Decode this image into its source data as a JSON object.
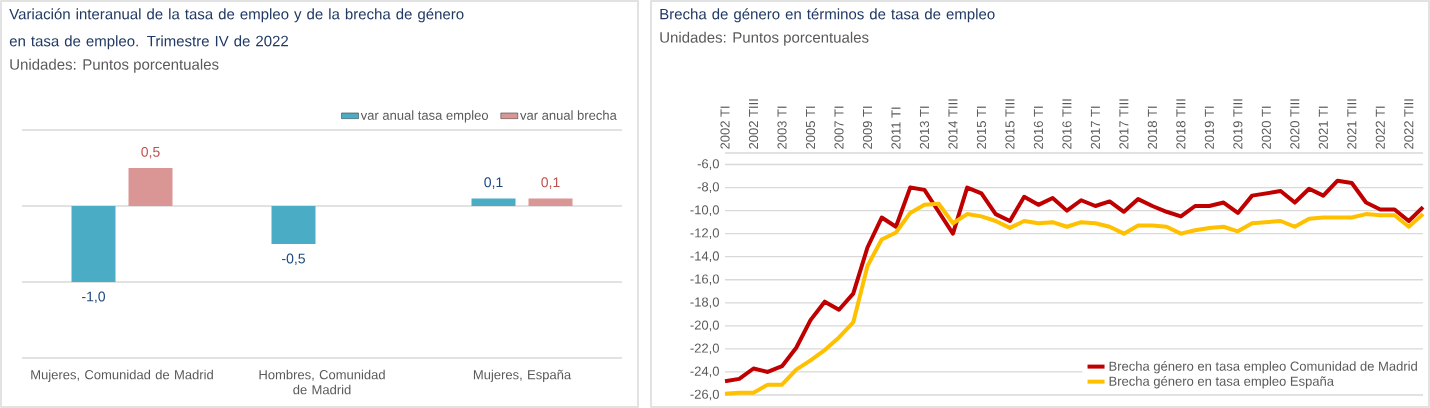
{
  "chart_data": [
    {
      "type": "bar",
      "title": "Variación interanual de la tasa de empleo y de la brecha de género en tasa de empleo. Trimestre IV de 2022",
      "subtitle": "Unidades: Puntos porcentuales",
      "categories": [
        "Mujeres, Comunidad de Madrid",
        "Hombres, Comunidad de Madrid",
        "Mujeres, España"
      ],
      "series": [
        {
          "name": "var anual tasa empleo",
          "color": "#4bacc6",
          "values": [
            -1.0,
            -0.5,
            0.1
          ],
          "value_labels": [
            "-1,0",
            "-0,5",
            "0,1"
          ]
        },
        {
          "name": "var anual brecha",
          "color": "#d99694",
          "values": [
            0.5,
            null,
            0.1
          ],
          "value_labels": [
            "0,5",
            null,
            "0,1"
          ]
        }
      ],
      "ylim": [
        -2,
        1
      ],
      "yticks": [
        {
          "value": -2,
          "label": null
        },
        {
          "value": -1,
          "label": null
        },
        {
          "value": 0,
          "label": null
        },
        {
          "value": 1,
          "label": null
        }
      ],
      "grid": "y",
      "legend": "top right",
      "tick_labels": "x"
    },
    {
      "type": "line",
      "title": "Brecha de género en términos de tasa de empleo",
      "subtitle": "Unidades: Puntos porcentuales",
      "categories": [
        "2002 TI",
        null,
        "2002 TIII",
        null,
        "2003 TI",
        null,
        "2005 TI",
        null,
        "2007 TI",
        null,
        "2009 TI",
        null,
        "2011 TI",
        null,
        "2013 TI",
        null,
        "2014 TIII",
        null,
        "2015 TI",
        null,
        "2015 TIII",
        null,
        "2016 TI",
        null,
        "2016 TIII",
        null,
        "2017 TI",
        null,
        "2017 TIII",
        null,
        "2018 TI",
        null,
        "2018 TIII",
        null,
        "2019 TI",
        null,
        "2019 TIII",
        null,
        "2020 TI",
        null,
        "2020 TIII",
        null,
        "2021 TI",
        null,
        "2021 TIII",
        null,
        "2022 TI",
        null,
        "2022 TIII",
        null
      ],
      "series": [
        {
          "name": "Brecha género en tasa empleo Comunidad de Madrid",
          "color": "#c00000",
          "values": [
            -24.8,
            -24.6,
            -23.7,
            -24.0,
            -23.5,
            -21.9,
            -19.5,
            -17.9,
            -18.6,
            -17.2,
            -13.2,
            -10.6,
            -11.4,
            -8.0,
            -8.2,
            -10.1,
            -12.0,
            -8.0,
            -8.5,
            -10.3,
            -10.9,
            -8.8,
            -9.5,
            -8.9,
            -10.0,
            -9.1,
            -9.6,
            -9.2,
            -10.1,
            -9.0,
            -9.6,
            -10.1,
            -10.5,
            -9.6,
            -9.6,
            -9.3,
            -10.2,
            -8.7,
            -8.5,
            -8.3,
            -9.3,
            -8.1,
            -8.7,
            -7.4,
            -7.6,
            -9.3,
            -9.9,
            -9.9,
            -10.9,
            -9.7
          ]
        },
        {
          "name": "Brecha género en tasa empleo España",
          "color": "#ffc000",
          "values": [
            -25.9,
            -25.8,
            -25.8,
            -25.1,
            -25.1,
            -23.8,
            -23.0,
            -22.1,
            -21.0,
            -19.7,
            -14.8,
            -12.5,
            -11.9,
            -10.2,
            -9.5,
            -9.4,
            -11.1,
            -10.3,
            -10.5,
            -10.9,
            -11.5,
            -10.9,
            -11.1,
            -11.0,
            -11.4,
            -11.0,
            -11.1,
            -11.4,
            -12.0,
            -11.3,
            -11.3,
            -11.4,
            -12.0,
            -11.7,
            -11.5,
            -11.4,
            -11.8,
            -11.1,
            -11.0,
            -10.9,
            -11.4,
            -10.7,
            -10.6,
            -10.6,
            -10.6,
            -10.3,
            -10.4,
            -10.4,
            -11.4,
            -10.3
          ]
        }
      ],
      "ylim": [
        -26,
        -5
      ],
      "yticks": [
        {
          "value": -26,
          "label": "-26,0"
        },
        {
          "value": -24,
          "label": "-24,0"
        },
        {
          "value": -22,
          "label": "-22,0"
        },
        {
          "value": -20,
          "label": "-20,0"
        },
        {
          "value": -18,
          "label": "-18,0"
        },
        {
          "value": -16,
          "label": "-16,0"
        },
        {
          "value": -14,
          "label": "-14,0"
        },
        {
          "value": -12,
          "label": "-12,0"
        },
        {
          "value": -10,
          "label": "-10,0"
        },
        {
          "value": -8,
          "label": "-8,0"
        },
        {
          "value": -6,
          "label": "-6,0"
        },
        {
          "value": -5,
          "label": null
        }
      ],
      "grid": "y",
      "legend": "bottom right",
      "line_style": "solid"
    }
  ]
}
